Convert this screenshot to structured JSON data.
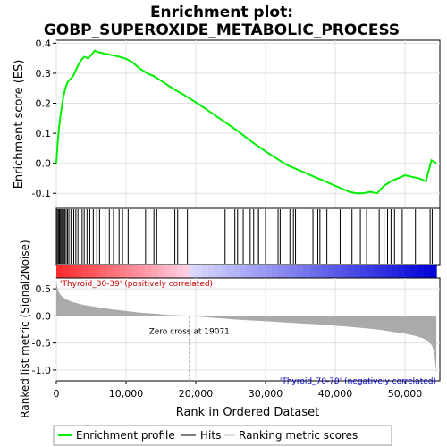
{
  "chart_data": {
    "type": "line",
    "title_line1": "Enrichment plot:",
    "title_line2": "GOBP_SUPEROXIDE_METABOLIC_PROCESS",
    "es_ylabel": "Enrichment score (ES)",
    "rank_ylabel": "Ranked list metric (Signal2Noise)",
    "xlabel": "Rank in Ordered Dataset",
    "xlim": [
      0,
      55000
    ],
    "x_ticks": [
      0,
      10000,
      20000,
      30000,
      40000,
      50000
    ],
    "x_tick_labels": [
      "0",
      "10,000",
      "20,000",
      "30,000",
      "40,000",
      "50,000"
    ],
    "es_ylim": [
      -0.15,
      0.41
    ],
    "es_ticks": [
      -0.1,
      0.0,
      0.1,
      0.2,
      0.3,
      0.4
    ],
    "es_tick_labels": [
      "-0.1",
      "0.0",
      "0.1",
      "0.2",
      "0.3",
      "0.4"
    ],
    "rank_ylim": [
      -1.2,
      0.7
    ],
    "rank_ticks": [
      -1.0,
      -0.5,
      0.0,
      0.5
    ],
    "rank_tick_labels": [
      "-1.0",
      "-0.5",
      "0.0",
      "0.5"
    ],
    "total_rank": 54500,
    "zero_cross": 19071,
    "zero_cross_label": "Zero cross at 19071",
    "pos_label": "'Thyroid_30-39' (positively correlated)",
    "neg_label": "'Thyroid_70-79' (negatively correlated)",
    "es_curve": {
      "x": [
        0,
        200,
        400,
        600,
        800,
        1000,
        1300,
        1600,
        2000,
        2400,
        2800,
        3200,
        3600,
        4000,
        4500,
        5000,
        5500,
        6000,
        6500,
        7000,
        7500,
        8000,
        8500,
        9000,
        9500,
        10000,
        11000,
        12000,
        13000,
        14000,
        15000,
        16000,
        17000,
        18000,
        19000,
        20000,
        21000,
        22000,
        23000,
        24000,
        25000,
        26000,
        27000,
        28000,
        29000,
        30000,
        31000,
        32000,
        33000,
        34000,
        35000,
        36000,
        37000,
        38000,
        39000,
        40000,
        41000,
        42000,
        43000,
        44000,
        45000,
        46000,
        47000,
        48000,
        49000,
        50000,
        51000,
        52000,
        53000,
        53800,
        54500
      ],
      "y": [
        0.0,
        0.07,
        0.12,
        0.16,
        0.19,
        0.22,
        0.25,
        0.27,
        0.28,
        0.29,
        0.31,
        0.33,
        0.345,
        0.355,
        0.35,
        0.36,
        0.375,
        0.37,
        0.368,
        0.365,
        0.363,
        0.36,
        0.358,
        0.355,
        0.352,
        0.348,
        0.335,
        0.315,
        0.3,
        0.29,
        0.275,
        0.26,
        0.245,
        0.232,
        0.218,
        0.203,
        0.188,
        0.172,
        0.156,
        0.14,
        0.124,
        0.108,
        0.09,
        0.072,
        0.056,
        0.04,
        0.025,
        0.01,
        -0.005,
        -0.015,
        -0.025,
        -0.035,
        -0.045,
        -0.055,
        -0.065,
        -0.075,
        -0.085,
        -0.095,
        -0.1,
        -0.1,
        -0.095,
        -0.1,
        -0.075,
        -0.06,
        -0.05,
        -0.04,
        -0.045,
        -0.05,
        -0.06,
        0.01,
        0.0
      ]
    },
    "hits": [
      150,
      300,
      450,
      600,
      750,
      900,
      1050,
      1200,
      1400,
      1600,
      1800,
      2100,
      2500,
      2800,
      3100,
      3400,
      3700,
      4000,
      4400,
      4800,
      5300,
      5800,
      6200,
      7000,
      7600,
      8200,
      9000,
      9500,
      10300,
      12800,
      14000,
      14400,
      17000,
      17400,
      18800,
      24200,
      25600,
      26000,
      26800,
      27800,
      28300,
      28800,
      29000,
      30000,
      31800,
      32100,
      33500,
      34000,
      34300,
      36800,
      37500,
      37800,
      38800,
      40700,
      42400,
      43600,
      44500,
      46300,
      47000,
      47500,
      48000,
      48500,
      49600,
      51500,
      53600,
      53900
    ],
    "metric_curve": {
      "x": [
        0,
        300,
        800,
        1500,
        2500,
        4000,
        6000,
        8000,
        10000,
        12000,
        14000,
        16000,
        18000,
        19071,
        22000,
        26000,
        30000,
        34000,
        38000,
        42000,
        46000,
        48000,
        50000,
        51500,
        52500,
        53300,
        53900,
        54200,
        54500
      ],
      "y": [
        0.62,
        0.45,
        0.36,
        0.3,
        0.25,
        0.2,
        0.16,
        0.12,
        0.09,
        0.06,
        0.04,
        0.02,
        0.01,
        0.0,
        -0.03,
        -0.07,
        -0.1,
        -0.13,
        -0.16,
        -0.2,
        -0.25,
        -0.29,
        -0.33,
        -0.37,
        -0.41,
        -0.46,
        -0.55,
        -0.7,
        -1.05
      ]
    },
    "legend": {
      "items": [
        {
          "label": "Enrichment profile",
          "color": "#00dd00"
        },
        {
          "label": "Hits",
          "color": "#000000"
        },
        {
          "label": "Ranking metric scores",
          "color": "#c0c0c0"
        }
      ],
      "placement": "bottom"
    },
    "colors": {
      "es_line": "#00ee00",
      "grid": "#e0e0e0",
      "metric_fill": "#aaaaaa",
      "pos_text": "#cc0000",
      "neg_text": "#0000cc"
    }
  }
}
